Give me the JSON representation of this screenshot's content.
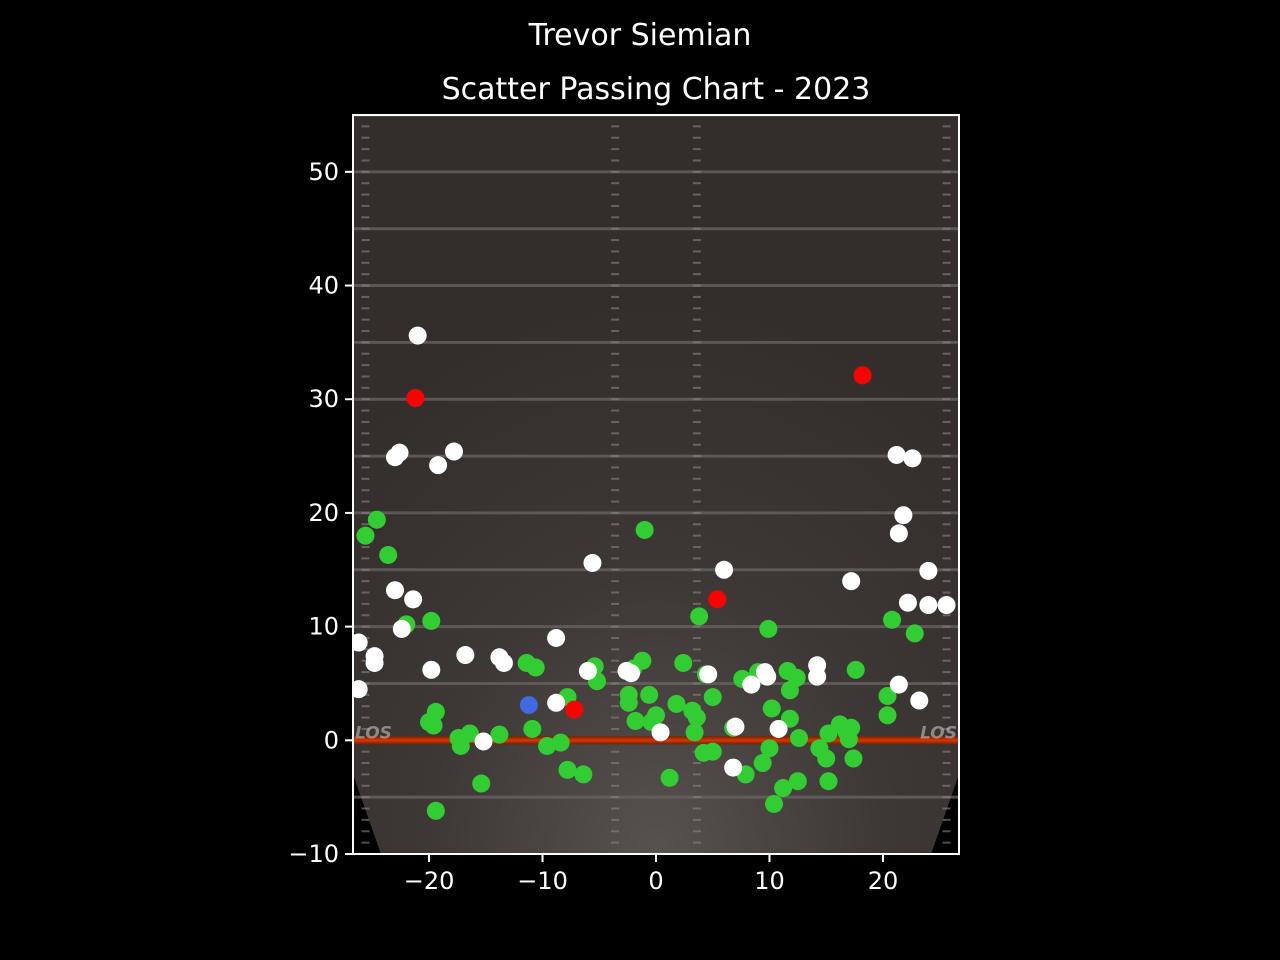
{
  "chart_data": {
    "type": "scatter",
    "title": "Trevor Siemian",
    "subtitle": "Scatter Passing Chart - 2023",
    "xlabel": "",
    "ylabel": "",
    "xlim": [
      -26.7,
      26.7
    ],
    "ylim": [
      -10,
      55
    ],
    "xticks": [
      -20,
      -10,
      0,
      10,
      20
    ],
    "yticks": [
      -10,
      0,
      10,
      20,
      30,
      40,
      50
    ],
    "grid": false,
    "field_text": {
      "los_left": "LOS",
      "los_right": "LOS"
    },
    "colors": {
      "complete": "#32cd32",
      "incomplete": "#ffffff",
      "interception": "#ff0000",
      "touchdown": "#4169e1",
      "los_line": "#c83200",
      "field": "#3a3533"
    },
    "series": [
      {
        "key": "complete",
        "points": [
          [
            -25.6,
            18.0
          ],
          [
            -24.6,
            19.4
          ],
          [
            -23.6,
            16.3
          ],
          [
            -22.0,
            10.2
          ],
          [
            -19.8,
            10.5
          ],
          [
            -19.4,
            2.5
          ],
          [
            -20.0,
            1.6
          ],
          [
            -19.6,
            1.3
          ],
          [
            -17.4,
            0.2
          ],
          [
            -17.2,
            -0.5
          ],
          [
            -16.4,
            0.6
          ],
          [
            -15.4,
            -3.8
          ],
          [
            -13.8,
            0.5
          ],
          [
            -19.4,
            -6.2
          ],
          [
            -11.4,
            6.8
          ],
          [
            -10.6,
            6.4
          ],
          [
            -10.9,
            1.0
          ],
          [
            -9.6,
            -0.5
          ],
          [
            -8.4,
            -0.2
          ],
          [
            -7.8,
            3.8
          ],
          [
            -7.8,
            -2.6
          ],
          [
            -6.4,
            -3.0
          ],
          [
            -5.4,
            6.5
          ],
          [
            -5.2,
            5.2
          ],
          [
            -2.4,
            4.0
          ],
          [
            -2.4,
            3.3
          ],
          [
            -1.8,
            1.7
          ],
          [
            -2.0,
            6.3
          ],
          [
            -1.2,
            7.0
          ],
          [
            -1.0,
            18.5
          ],
          [
            -0.6,
            4.0
          ],
          [
            -0.4,
            1.6
          ],
          [
            0.0,
            2.2
          ],
          [
            1.2,
            -3.3
          ],
          [
            1.8,
            3.2
          ],
          [
            2.4,
            6.8
          ],
          [
            3.2,
            2.6
          ],
          [
            3.4,
            0.7
          ],
          [
            3.6,
            2.0
          ],
          [
            3.8,
            10.9
          ],
          [
            4.2,
            -1.1
          ],
          [
            4.4,
            5.8
          ],
          [
            5.0,
            3.8
          ],
          [
            5.0,
            -1.0
          ],
          [
            6.8,
            1.1
          ],
          [
            7.6,
            5.4
          ],
          [
            7.9,
            -3.0
          ],
          [
            9.0,
            6.0
          ],
          [
            9.4,
            -2.0
          ],
          [
            9.9,
            9.8
          ],
          [
            10.0,
            -0.7
          ],
          [
            10.2,
            2.8
          ],
          [
            10.4,
            -5.6
          ],
          [
            11.2,
            -4.2
          ],
          [
            11.6,
            6.1
          ],
          [
            11.8,
            4.4
          ],
          [
            11.8,
            1.9
          ],
          [
            12.4,
            5.5
          ],
          [
            12.6,
            0.2
          ],
          [
            12.5,
            -3.6
          ],
          [
            14.4,
            -0.7
          ],
          [
            15.0,
            -1.6
          ],
          [
            15.2,
            0.6
          ],
          [
            15.2,
            -3.6
          ],
          [
            16.2,
            1.4
          ],
          [
            16.8,
            0.7
          ],
          [
            17.0,
            0.1
          ],
          [
            17.2,
            1.1
          ],
          [
            17.4,
            -1.6
          ],
          [
            17.6,
            6.2
          ],
          [
            20.4,
            2.2
          ],
          [
            20.4,
            3.9
          ],
          [
            20.8,
            10.6
          ],
          [
            22.8,
            9.4
          ]
        ]
      },
      {
        "key": "incomplete",
        "points": [
          [
            -21.0,
            35.6
          ],
          [
            -22.6,
            25.3
          ],
          [
            -23.0,
            24.9
          ],
          [
            -17.8,
            25.4
          ],
          [
            -19.2,
            24.2
          ],
          [
            -23.0,
            13.2
          ],
          [
            -21.4,
            12.4
          ],
          [
            -22.4,
            9.8
          ],
          [
            -26.2,
            8.6
          ],
          [
            -24.8,
            7.4
          ],
          [
            -24.8,
            6.8
          ],
          [
            -19.8,
            6.2
          ],
          [
            -16.8,
            7.5
          ],
          [
            -13.8,
            7.3
          ],
          [
            -13.4,
            6.8
          ],
          [
            -26.2,
            4.5
          ],
          [
            -15.2,
            -0.1
          ],
          [
            -8.8,
            9.0
          ],
          [
            -8.8,
            3.3
          ],
          [
            -5.6,
            15.6
          ],
          [
            -6.0,
            6.1
          ],
          [
            -2.6,
            6.1
          ],
          [
            -2.2,
            5.9
          ],
          [
            0.4,
            0.7
          ],
          [
            4.6,
            5.8
          ],
          [
            6.0,
            15.0
          ],
          [
            6.8,
            -2.4
          ],
          [
            7.0,
            1.2
          ],
          [
            8.4,
            4.9
          ],
          [
            9.6,
            6.0
          ],
          [
            9.8,
            5.6
          ],
          [
            10.8,
            1.0
          ],
          [
            14.2,
            5.6
          ],
          [
            14.2,
            6.6
          ],
          [
            17.2,
            14.0
          ],
          [
            21.2,
            25.1
          ],
          [
            22.6,
            24.8
          ],
          [
            21.8,
            19.8
          ],
          [
            21.4,
            18.2
          ],
          [
            24.0,
            14.9
          ],
          [
            22.2,
            12.1
          ],
          [
            24.0,
            11.9
          ],
          [
            25.6,
            11.9
          ],
          [
            21.4,
            4.9
          ],
          [
            23.2,
            3.5
          ]
        ]
      },
      {
        "key": "interception",
        "points": [
          [
            -21.2,
            30.1
          ],
          [
            18.2,
            32.1
          ],
          [
            5.4,
            12.4
          ],
          [
            -7.2,
            2.7
          ]
        ]
      },
      {
        "key": "touchdown",
        "points": [
          [
            -11.2,
            3.1
          ]
        ]
      }
    ]
  }
}
